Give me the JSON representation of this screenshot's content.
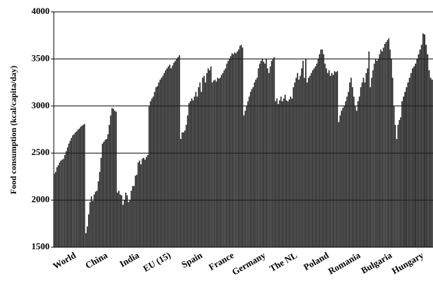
{
  "chart_data": {
    "type": "bar",
    "y_label": "Food consumption (kcal/capita/day)",
    "ylim": [
      1500,
      4000
    ],
    "yticks": [
      1500,
      2000,
      2500,
      3000,
      3500,
      4000
    ],
    "grid": true,
    "color": "#1e1e1e",
    "groups": [
      {
        "name": "World",
        "values": [
          2280,
          2300,
          2350,
          2370,
          2400,
          2420,
          2430,
          2440,
          2480,
          2520,
          2560,
          2600,
          2630,
          2660,
          2690,
          2700,
          2720,
          2730,
          2750,
          2760,
          2780,
          2790,
          2800,
          2810
        ]
      },
      {
        "name": "China",
        "values": [
          1650,
          1720,
          1850,
          1980,
          2040,
          1990,
          2060,
          2090,
          2100,
          2200,
          2300,
          2450,
          2600,
          2620,
          2640,
          2650,
          2700,
          2800,
          2900,
          2980,
          2970,
          2950,
          2940
        ]
      },
      {
        "name": "India",
        "values": [
          2080,
          2100,
          2060,
          2050,
          1950,
          2000,
          2080,
          2050,
          1980,
          2000,
          2100,
          2150,
          2150,
          2260,
          2270,
          2400,
          2420,
          2380,
          2440,
          2450,
          2430,
          2460,
          2480
        ]
      },
      {
        "name": "EU (15)",
        "values": [
          3000,
          3050,
          3080,
          3100,
          3150,
          3200,
          3210,
          3250,
          3280,
          3300,
          3320,
          3350,
          3380,
          3400,
          3420,
          3440,
          3400,
          3430,
          3460,
          3480,
          3500,
          3520,
          3540
        ]
      },
      {
        "name": "Spain",
        "values": [
          2650,
          2720,
          2720,
          2740,
          2800,
          2900,
          3030,
          3050,
          3080,
          3060,
          3100,
          3150,
          3100,
          3200,
          3250,
          3150,
          3300,
          3320,
          3250,
          3350,
          3400,
          3380,
          3420
        ]
      },
      {
        "name": "France",
        "values": [
          3250,
          3270,
          3280,
          3260,
          3300,
          3290,
          3300,
          3330,
          3350,
          3380,
          3400,
          3450,
          3480,
          3500,
          3530,
          3560,
          3550,
          3570,
          3560,
          3580,
          3600,
          3640,
          3650,
          3620
        ]
      },
      {
        "name": "Germany",
        "values": [
          2900,
          2950,
          3000,
          3050,
          3100,
          3150,
          3180,
          3200,
          3250,
          3280,
          3300,
          3400,
          3450,
          3480,
          3500,
          3470,
          3450,
          3500,
          3400,
          3350,
          3420,
          3480,
          3500,
          3520
        ]
      },
      {
        "name": "The NL",
        "values": [
          3050,
          3080,
          3020,
          3060,
          3100,
          3050,
          3080,
          3120,
          3060,
          3050,
          3070,
          3100,
          3080,
          3200,
          3250,
          3300,
          3350,
          3280,
          3320,
          3400,
          3480,
          3300,
          3500
        ]
      },
      {
        "name": "Poland",
        "values": [
          3250,
          3300,
          3320,
          3350,
          3380,
          3400,
          3420,
          3450,
          3500,
          3550,
          3600,
          3600,
          3550,
          3450,
          3400,
          3350,
          3380,
          3320,
          3350,
          3330,
          3370,
          3360,
          3370
        ]
      },
      {
        "name": "Romania",
        "values": [
          2830,
          2900,
          2950,
          2980,
          3000,
          3050,
          3100,
          3150,
          3250,
          3300,
          3200,
          3100,
          3000,
          2950,
          3050,
          3100,
          3200,
          3250,
          3300,
          3250,
          3350,
          3400,
          3580
        ]
      },
      {
        "name": "Bulgaria",
        "values": [
          3200,
          3300,
          3380,
          3450,
          3500,
          3480,
          3500,
          3550,
          3600,
          3580,
          3620,
          3660,
          3680,
          3700,
          3720,
          3600,
          3500,
          3300,
          3000,
          2800,
          2650,
          2800,
          2850,
          2880
        ]
      },
      {
        "name": "Hungary",
        "values": [
          3050,
          3100,
          3150,
          3200,
          3250,
          3300,
          3350,
          3400,
          3420,
          3450,
          3500,
          3550,
          3600,
          3650,
          3770,
          3760,
          3650,
          3550,
          3380,
          3300,
          3280
        ]
      }
    ]
  }
}
